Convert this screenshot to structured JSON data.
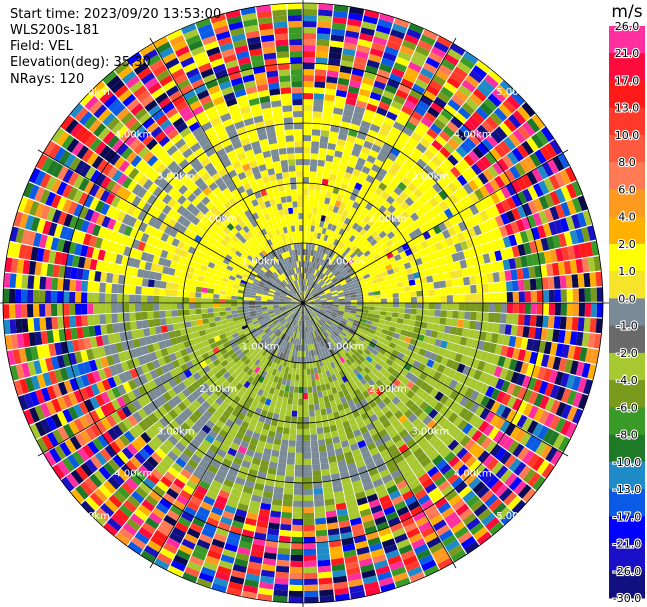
{
  "info": {
    "start_time": "Start time: 2023/09/20 13:53:00",
    "instrument": "WLS200s-181",
    "field": "Field: VEL",
    "elevation": "Elevation(deg): 35.30",
    "nrays": "NRays: 120"
  },
  "chart_data": {
    "type": "heatmap",
    "projection": "polar PPI",
    "field": "VEL",
    "units": "m/s",
    "n_rays": 120,
    "range_rings_km": [
      1,
      2,
      3,
      4,
      5
    ],
    "ring_labels": [
      "1.00km",
      "2.00km",
      "3.00km",
      "4.00km",
      "5.00km"
    ],
    "spoke_angles_deg": [
      0,
      30,
      60,
      90,
      120,
      150,
      180,
      210,
      240,
      270,
      300,
      330
    ],
    "colorbar": {
      "label": "m/s",
      "tick_labels": [
        "26.0",
        "21.0",
        "17.0",
        "13.0",
        "10.0",
        "8.0",
        "6.0",
        "4.0",
        "2.0",
        "1.0",
        "0.0",
        "-1.0",
        "-2.0",
        "-4.0",
        "-6.0",
        "-8.0",
        "-10.0",
        "-13.0",
        "-17.0",
        "-21.0",
        "-26.0",
        "-30.0"
      ],
      "colors": [
        "#ff2fa0",
        "#ff0a3c",
        "#ff1a1a",
        "#ff3a2a",
        "#ff5a40",
        "#ff7a55",
        "#ff9a20",
        "#ffb000",
        "#ffff00",
        "#f6e42a",
        "#7a8a96",
        "#6a6a6a",
        "#a8c832",
        "#7a9a1e",
        "#3a9a28",
        "#1f7a28",
        "#1e8ac8",
        "#0a5ae6",
        "#0000ff",
        "#1a10c8",
        "#101080",
        "#0a0a50"
      ]
    },
    "regions": [
      {
        "range_km": [
          0.0,
          1.0
        ],
        "dominant": "0.0",
        "description_value": 0
      },
      {
        "range_km": [
          1.0,
          2.2
        ],
        "north_half": "2.0",
        "south_half": "-2.0"
      },
      {
        "range_km": [
          2.2,
          3.5
        ],
        "north_half": "2.0",
        "south_half": "-2.0",
        "noise_fraction": 0.15
      },
      {
        "range_km": [
          3.5,
          5.0
        ],
        "noise_fraction": 1.0
      }
    ]
  }
}
